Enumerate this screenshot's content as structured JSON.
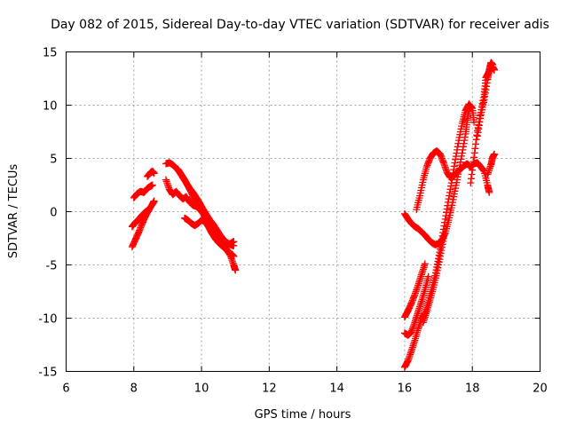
{
  "chart_data": {
    "type": "scatter",
    "title": "Day 082 of 2015, Sidereal Day-to-day VTEC variation (SDTVAR) for receiver adis",
    "xlabel": "GPS time / hours",
    "ylabel": "SDTVAR / TECUs",
    "xlim": [
      6,
      20
    ],
    "ylim": [
      -15,
      15
    ],
    "xticks": [
      "6",
      "8",
      "10",
      "12",
      "14",
      "16",
      "18",
      "20"
    ],
    "yticks": [
      "-15",
      "-10",
      "-5",
      "0",
      "5",
      "10",
      "15"
    ],
    "grid": true,
    "marker": "plus",
    "color": "#ff0000",
    "segments": [
      [
        [
          7.95,
          -3.3
        ],
        [
          8.05,
          -2.6
        ],
        [
          8.15,
          -1.9
        ],
        [
          8.25,
          -1.1
        ],
        [
          8.35,
          -0.4
        ],
        [
          8.45,
          0.2
        ],
        [
          8.55,
          0.7
        ],
        [
          8.6,
          1.0
        ]
      ],
      [
        [
          7.95,
          -1.4
        ],
        [
          8.05,
          -1.0
        ],
        [
          8.15,
          -0.7
        ],
        [
          8.25,
          -0.3
        ],
        [
          8.35,
          0.0
        ],
        [
          8.45,
          0.2
        ]
      ],
      [
        [
          8.0,
          1.3
        ],
        [
          8.1,
          1.7
        ],
        [
          8.2,
          1.9
        ],
        [
          8.3,
          1.8
        ],
        [
          8.4,
          2.2
        ],
        [
          8.5,
          2.4
        ],
        [
          8.55,
          2.5
        ]
      ],
      [
        [
          8.4,
          3.3
        ],
        [
          8.5,
          3.7
        ],
        [
          8.55,
          3.8
        ],
        [
          8.6,
          3.6
        ]
      ],
      [
        [
          8.95,
          3.0
        ],
        [
          9.05,
          2.1
        ],
        [
          9.15,
          1.6
        ],
        [
          9.25,
          1.9
        ],
        [
          9.35,
          1.5
        ],
        [
          9.45,
          1.2
        ],
        [
          9.55,
          1.4
        ],
        [
          9.65,
          0.9
        ],
        [
          9.75,
          0.6
        ],
        [
          9.85,
          0.5
        ],
        [
          9.95,
          0.2
        ],
        [
          10.05,
          -0.2
        ],
        [
          10.15,
          -0.7
        ],
        [
          10.25,
          -1.3
        ],
        [
          10.35,
          -1.6
        ],
        [
          10.45,
          -2.1
        ],
        [
          10.55,
          -2.6
        ],
        [
          10.65,
          -3.1
        ],
        [
          10.75,
          -3.6
        ],
        [
          10.85,
          -4.1
        ],
        [
          10.95,
          -5.0
        ],
        [
          11.0,
          -5.5
        ]
      ],
      [
        [
          8.95,
          4.5
        ],
        [
          9.05,
          4.6
        ],
        [
          9.15,
          4.4
        ],
        [
          9.25,
          4.1
        ],
        [
          9.35,
          3.7
        ],
        [
          9.45,
          3.2
        ],
        [
          9.55,
          2.7
        ],
        [
          9.65,
          2.2
        ],
        [
          9.75,
          1.8
        ],
        [
          9.85,
          1.3
        ],
        [
          9.95,
          0.8
        ],
        [
          10.05,
          0.2
        ],
        [
          10.15,
          -0.3
        ],
        [
          10.25,
          -0.8
        ],
        [
          10.35,
          -1.2
        ],
        [
          10.45,
          -1.7
        ],
        [
          10.55,
          -2.2
        ],
        [
          10.65,
          -2.6
        ],
        [
          10.75,
          -2.9
        ],
        [
          10.85,
          -3.1
        ],
        [
          10.95,
          -3.2
        ]
      ],
      [
        [
          9.3,
          4.0
        ],
        [
          9.4,
          3.5
        ],
        [
          9.5,
          3.0
        ],
        [
          9.6,
          2.4
        ],
        [
          9.7,
          1.8
        ],
        [
          9.8,
          1.2
        ],
        [
          9.9,
          0.7
        ],
        [
          10.0,
          0.1
        ],
        [
          10.1,
          -0.5
        ],
        [
          10.2,
          -1.1
        ],
        [
          10.3,
          -1.7
        ],
        [
          10.4,
          -2.3
        ],
        [
          10.5,
          -2.7
        ],
        [
          10.6,
          -3.1
        ],
        [
          10.7,
          -3.5
        ],
        [
          10.8,
          -3.8
        ],
        [
          10.9,
          -4.0
        ],
        [
          10.95,
          -4.2
        ]
      ],
      [
        [
          9.5,
          -0.6
        ],
        [
          9.6,
          -0.8
        ],
        [
          9.7,
          -1.1
        ],
        [
          9.8,
          -1.3
        ],
        [
          9.9,
          -1.1
        ],
        [
          10.0,
          -0.8
        ],
        [
          10.1,
          -0.9
        ],
        [
          10.2,
          -1.4
        ],
        [
          10.3,
          -2.0
        ],
        [
          10.4,
          -2.5
        ],
        [
          10.5,
          -2.9
        ],
        [
          10.6,
          -3.2
        ],
        [
          10.7,
          -3.3
        ],
        [
          10.8,
          -3.1
        ],
        [
          10.9,
          -2.9
        ],
        [
          10.95,
          -2.8
        ]
      ],
      [
        [
          16.0,
          -0.2
        ],
        [
          16.1,
          -0.7
        ],
        [
          16.2,
          -1.1
        ],
        [
          16.3,
          -1.4
        ],
        [
          16.4,
          -1.6
        ],
        [
          16.5,
          -1.9
        ],
        [
          16.6,
          -2.2
        ],
        [
          16.7,
          -2.6
        ],
        [
          16.8,
          -2.9
        ],
        [
          16.9,
          -3.1
        ],
        [
          17.0,
          -3.0
        ],
        [
          17.1,
          -2.7
        ],
        [
          17.2,
          -2.0
        ],
        [
          17.3,
          -0.8
        ],
        [
          17.4,
          0.6
        ],
        [
          17.5,
          2.2
        ],
        [
          17.6,
          3.8
        ],
        [
          17.7,
          5.5
        ],
        [
          17.8,
          7.3
        ],
        [
          17.85,
          8.6
        ],
        [
          17.9,
          9.6
        ],
        [
          17.95,
          9.9
        ]
      ],
      [
        [
          16.0,
          -9.9
        ],
        [
          16.1,
          -9.3
        ],
        [
          16.2,
          -8.6
        ],
        [
          16.3,
          -7.8
        ],
        [
          16.4,
          -6.9
        ],
        [
          16.5,
          -5.9
        ],
        [
          16.6,
          -4.9
        ]
      ],
      [
        [
          16.0,
          -11.4
        ],
        [
          16.1,
          -11.6
        ],
        [
          16.2,
          -11.3
        ],
        [
          16.3,
          -10.4
        ],
        [
          16.4,
          -9.4
        ],
        [
          16.5,
          -8.4
        ],
        [
          16.6,
          -7.3
        ],
        [
          16.7,
          -6.1
        ]
      ],
      [
        [
          16.35,
          0.2
        ],
        [
          16.45,
          1.5
        ],
        [
          16.55,
          3.0
        ],
        [
          16.65,
          4.2
        ],
        [
          16.75,
          5.0
        ],
        [
          16.85,
          5.5
        ],
        [
          16.95,
          5.7
        ],
        [
          17.05,
          5.4
        ],
        [
          17.15,
          4.6
        ],
        [
          17.25,
          3.7
        ],
        [
          17.35,
          3.2
        ],
        [
          17.45,
          3.3
        ],
        [
          17.55,
          3.7
        ],
        [
          17.65,
          4.0
        ],
        [
          17.75,
          4.3
        ],
        [
          17.85,
          4.5
        ],
        [
          17.95,
          4.2
        ],
        [
          18.05,
          4.5
        ],
        [
          18.15,
          4.6
        ],
        [
          18.25,
          4.2
        ],
        [
          18.35,
          3.8
        ],
        [
          18.45,
          2.5
        ],
        [
          18.5,
          1.8
        ]
      ],
      [
        [
          16.0,
          -14.6
        ],
        [
          16.1,
          -14.0
        ],
        [
          16.2,
          -13.1
        ],
        [
          16.3,
          -12.1
        ],
        [
          16.4,
          -11.0
        ],
        [
          16.5,
          -10.1
        ],
        [
          16.6,
          -9.5
        ],
        [
          16.7,
          -8.5
        ],
        [
          16.8,
          -7.3
        ],
        [
          16.9,
          -6.0
        ],
        [
          17.0,
          -4.4
        ],
        [
          17.1,
          -2.6
        ],
        [
          17.2,
          -0.7
        ],
        [
          17.3,
          1.2
        ],
        [
          17.4,
          3.0
        ],
        [
          17.5,
          4.9
        ],
        [
          17.6,
          6.7
        ],
        [
          17.7,
          8.3
        ],
        [
          17.8,
          9.5
        ],
        [
          17.9,
          10.1
        ],
        [
          18.0,
          9.7
        ],
        [
          18.05,
          8.4
        ]
      ],
      [
        [
          16.55,
          -10.4
        ],
        [
          16.65,
          -9.4
        ],
        [
          16.75,
          -8.3
        ],
        [
          16.85,
          -7.1
        ],
        [
          16.95,
          -5.8
        ],
        [
          17.05,
          -4.2
        ],
        [
          17.15,
          -2.5
        ]
      ],
      [
        [
          17.95,
          2.7
        ],
        [
          18.05,
          5.1
        ],
        [
          18.15,
          7.6
        ],
        [
          18.25,
          9.3
        ],
        [
          18.35,
          11.0
        ],
        [
          18.4,
          12.6
        ],
        [
          18.5,
          13.2
        ],
        [
          18.6,
          13.6
        ],
        [
          18.65,
          13.3
        ]
      ],
      [
        [
          18.15,
          7.1
        ],
        [
          18.25,
          9.1
        ],
        [
          18.35,
          10.5
        ],
        [
          18.45,
          12.4
        ],
        [
          18.5,
          13.3
        ],
        [
          18.55,
          14.0
        ],
        [
          18.6,
          13.8
        ]
      ],
      [
        [
          18.45,
          3.5
        ],
        [
          18.55,
          4.4
        ],
        [
          18.6,
          5.1
        ],
        [
          18.65,
          5.4
        ]
      ]
    ]
  }
}
